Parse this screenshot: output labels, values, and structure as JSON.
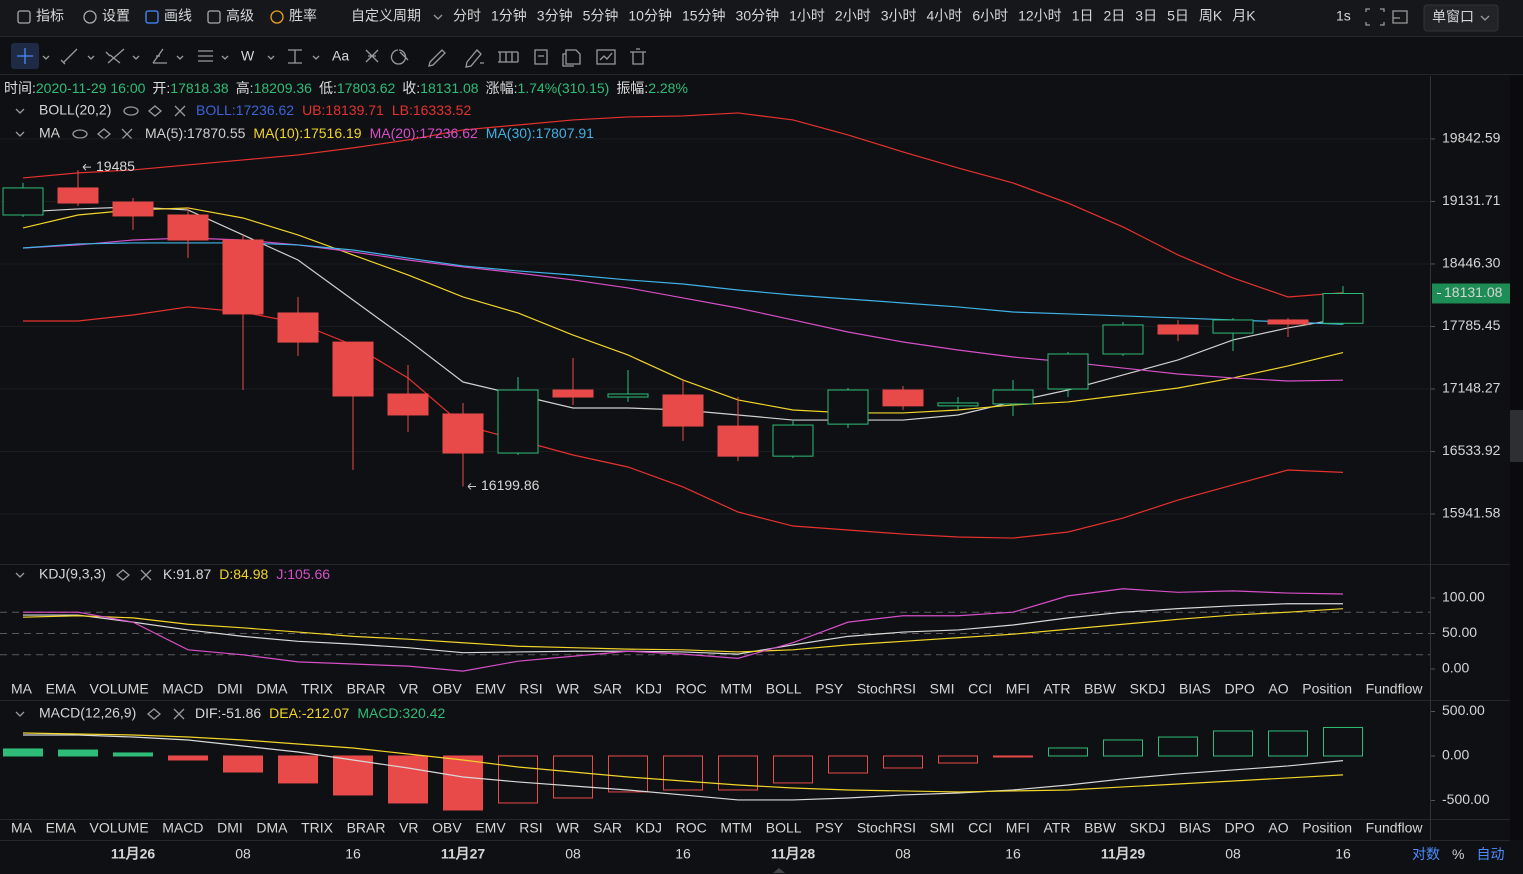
{
  "toolbar": {
    "menu": [
      "指标",
      "设置",
      "画线",
      "高级",
      "胜率"
    ],
    "active_menu": "画线",
    "period_menu": "自定义周期",
    "periods": [
      "分时",
      "1分钟",
      "3分钟",
      "5分钟",
      "10分钟",
      "15分钟",
      "30分钟",
      "1小时",
      "2小时",
      "3小时",
      "4小时",
      "6小时",
      "12小时",
      "1日",
      "2日",
      "3日",
      "5日",
      "周K",
      "月K"
    ],
    "active_period": "4小时",
    "interval": "1s",
    "window_mode": "单窗口"
  },
  "drawing_tools": [
    "W",
    "Aa"
  ],
  "info": [
    {
      "label": "时间:",
      "value": "2020-11-29 16:00"
    },
    {
      "label": "开:",
      "value": 17818.38
    },
    {
      "label": "高:",
      "value": 18209.36
    },
    {
      "label": "低:",
      "value": 17803.62
    },
    {
      "label": "收:",
      "value": 18131.08
    },
    {
      "label": "涨幅:",
      "value": "1.74%(310.15)"
    },
    {
      "label": "振幅:",
      "value": "2.28%"
    }
  ],
  "indicator_tabs": [
    "MA",
    "EMA",
    "VOLUME",
    "MACD",
    "DMI",
    "DMA",
    "TRIX",
    "BRAR",
    "VR",
    "OBV",
    "EMV",
    "RSI",
    "WR",
    "SAR",
    "KDJ",
    "ROC",
    "MTM",
    "BOLL",
    "PSY",
    "StochRSI",
    "SMI",
    "CCI",
    "MFI",
    "ATR",
    "BBW",
    "SKDJ",
    "BIAS",
    "DPO",
    "AO",
    "Position",
    "Fundflow"
  ],
  "scale_options": [
    "对数",
    "%",
    "自动"
  ],
  "chart_data": [
    {
      "type": "candlestick",
      "categories": [
        null,
        null,
        "11月26",
        null,
        "08",
        null,
        "16",
        null,
        "11月27",
        null,
        "08",
        null,
        "16",
        null,
        "11月28",
        null,
        "08",
        null,
        "16",
        null,
        "11月29",
        null,
        "08",
        null,
        "16"
      ],
      "open": [
        18981,
        19283,
        19125,
        18981,
        18706,
        17926,
        17624,
        17098,
        16900,
        16519,
        17138,
        17068,
        17088,
        16781,
        16489,
        16800,
        17138,
        16980,
        16999,
        17148,
        17502,
        17801,
        17717,
        17853,
        17818.38
      ],
      "high": [
        19340,
        19485,
        19170,
        19070,
        18761,
        18095,
        17624,
        17390,
        17009,
        17269,
        17461,
        17339,
        17238,
        17068,
        16840,
        17158,
        17178,
        17068,
        17238,
        17522,
        17832,
        17853,
        17874,
        17874,
        18209.36
      ],
      "low": [
        18959,
        19081,
        18817,
        18510,
        17138,
        17482,
        16357,
        16723,
        16199.86,
        16500,
        16989,
        17019,
        16636,
        16441,
        16470,
        16762,
        16940,
        16940,
        16880,
        17068,
        17482,
        17634,
        17532,
        17676,
        17803.62
      ],
      "close": [
        19283,
        19114,
        18970,
        18706,
        17916,
        17624,
        17078,
        16890,
        16519,
        17138,
        17068,
        17098,
        16781,
        16489,
        16791,
        17138,
        16980,
        17009,
        17138,
        17502,
        17801,
        17707,
        17853,
        17811,
        18131.08
      ],
      "up_color": "#2ebd78",
      "down_color": "#e84a4a",
      "log_scale": true,
      "ylim": [
        15492,
        20561
      ],
      "yticks": [
        19842.59,
        19131.71,
        {
          "value": 18446.3,
          "label": "18446.30"
        },
        17785.45,
        17148.27,
        16533.92,
        15941.58
      ],
      "grid": true,
      "indicators": [
        {
          "name": "BOLL(20,2)",
          "series": [
            {
              "name": "BOLL:17236.62",
              "color": "#3d63d8"
            },
            {
              "name": "UB:18139.71",
              "color": "#e5322e",
              "values": [
                19396,
                19453,
                19487,
                19544,
                19601,
                19658,
                19739,
                19831,
                19947,
                20005,
                20064,
                20099,
                20111,
                20146,
                20064,
                19889,
                19693,
                19509,
                19339,
                19114,
                18849,
                18544,
                18296,
                18094,
                18139.71
              ]
            },
            {
              "name": "LB:16333.52",
              "color": "#e5322e",
              "values": [
                17842,
                17842,
                17905,
                17989,
                17936,
                17822,
                17594,
                17259,
                16791,
                16645,
                16500,
                16385,
                16195,
                15960,
                15830,
                15793,
                15756,
                15729,
                15719,
                15775,
                15904,
                16072,
                16214,
                16356,
                16333.52
              ]
            }
          ]
        },
        {
          "name": "MA",
          "series": [
            {
              "name": "MA(5):17870.55",
              "color": "#d0d0d0",
              "values": [
                19015,
                19048,
                19070,
                19037,
                18761,
                18489,
                18062,
                17646,
                17218,
                17088,
                16959,
                16959,
                16939,
                16890,
                16840,
                16840,
                16840,
                16890,
                17019,
                17138,
                17289,
                17441,
                17646,
                17770,
                17870.55
              ]
            },
            {
              "name": "MA(10):17516.19",
              "color": "#f2d42a",
              "values": [
                18838,
                18981,
                19037,
                19059,
                18948,
                18761,
                18544,
                18328,
                18094,
                17926,
                17697,
                17492,
                17238,
                17039,
                16939,
                16910,
                16910,
                16939,
                16989,
                17019,
                17088,
                17158,
                17259,
                17380,
                17516.19
              ]
            },
            {
              "name": "MA(20):17236.62",
              "color": "#d64fc8",
              "values": [
                18619,
                18652,
                18706,
                18728,
                18706,
                18652,
                18576,
                18489,
                18414,
                18349,
                18275,
                18190,
                18084,
                17978,
                17853,
                17728,
                17625,
                17543,
                17471,
                17420,
                17359,
                17299,
                17259,
                17228,
                17236.62
              ]
            },
            {
              "name": "MA(30):17807.91",
              "color": "#3fb2e6",
              "values": [
                18619,
                18663,
                18674,
                18674,
                18674,
                18652,
                18597,
                18510,
                18425,
                18371,
                18328,
                18275,
                18232,
                18168,
                18115,
                18073,
                18031,
                17989,
                17936,
                17916,
                17895,
                17874,
                17853,
                17832,
                17807.91
              ]
            }
          ]
        }
      ]
    },
    {
      "type": "line",
      "title": "KDJ(9,3,3)",
      "series": [
        {
          "name": "K:91.87",
          "color": "#d8d8d8",
          "values": [
            76,
            76,
            66,
            55,
            46,
            39,
            35,
            30,
            23,
            24,
            25,
            25,
            24,
            21,
            34,
            46,
            52,
            55,
            62,
            72,
            80,
            85,
            89,
            92,
            91.87
          ]
        },
        {
          "name": "D:84.98",
          "color": "#f2d42a",
          "values": [
            73,
            75,
            72,
            63,
            58,
            52,
            46,
            42,
            37,
            32,
            30,
            28,
            27,
            24,
            27,
            34,
            39,
            44,
            49,
            56,
            63,
            70,
            76,
            80,
            84.98
          ]
        },
        {
          "name": "J:105.66",
          "color": "#d64fc8",
          "values": [
            80,
            80,
            66,
            27,
            20,
            10,
            7,
            4,
            -3,
            11,
            18,
            25,
            21,
            15,
            37,
            66,
            75,
            75,
            80,
            103,
            113,
            108,
            110,
            107,
            105.66
          ]
        }
      ],
      "ylim": [
        -15.5,
        146.5
      ],
      "yticks": [
        {
          "value": 100,
          "label": "100.00"
        },
        {
          "value": 50,
          "label": "50.00"
        },
        {
          "value": 0,
          "label": "0.00"
        }
      ],
      "levels": [
        80,
        50,
        20
      ],
      "active_tab": "KDJ",
      "disabled_tab": "MACD"
    },
    {
      "type": "macd",
      "title": "MACD(12,26,9)",
      "histogram": {
        "name": "MACD:320.42",
        "up_color": "#2ebd78",
        "down_color": "#e84a4a",
        "values": [
          79,
          67,
          34,
          -45,
          -180,
          -303,
          -438,
          -528,
          -607,
          -528,
          -472,
          -404,
          -382,
          -382,
          -303,
          -191,
          -135,
          -79,
          -11,
          90,
          180,
          213,
          281,
          281,
          320.42
        ]
      },
      "series": [
        {
          "name": "DIF:-51.86",
          "color": "#d8d8d8",
          "values": [
            236,
            236,
            213,
            180,
            112,
            45,
            -45,
            -135,
            -236,
            -292,
            -337,
            -382,
            -438,
            -494,
            -494,
            -472,
            -438,
            -416,
            -382,
            -326,
            -258,
            -202,
            -157,
            -112,
            -51.86
          ]
        },
        {
          "name": "DEA:-212.07",
          "color": "#f2d42a",
          "values": [
            258,
            247,
            236,
            213,
            180,
            135,
            90,
            22,
            -45,
            -124,
            -180,
            -236,
            -281,
            -326,
            -360,
            -382,
            -393,
            -404,
            -393,
            -382,
            -348,
            -315,
            -281,
            -247,
            -212.07
          ]
        }
      ],
      "ylim": [
        -697,
        573
      ],
      "yticks": [
        {
          "value": 500,
          "label": "500.00"
        },
        {
          "value": 0,
          "label": "0.00"
        },
        {
          "value": -500,
          "label": "-500.00"
        }
      ],
      "active_tab": "MACD",
      "disabled_tab": "KDJ"
    }
  ]
}
